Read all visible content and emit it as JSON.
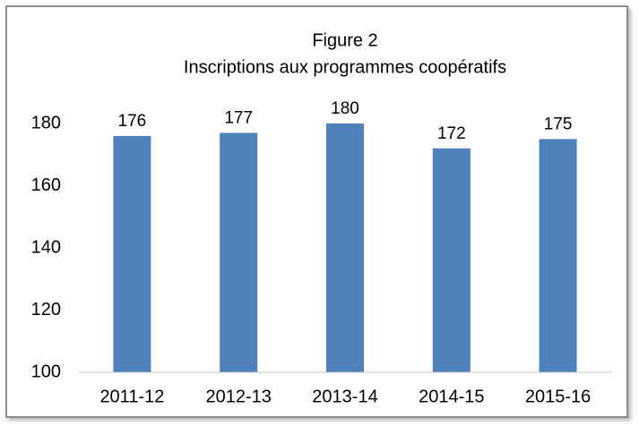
{
  "chart_data": {
    "type": "bar",
    "title": "Figure 2",
    "subtitle": "Inscriptions aux programmes coopératifs",
    "categories": [
      "2011-12",
      "2012-13",
      "2013-14",
      "2014-15",
      "2015-16"
    ],
    "values": [
      176,
      177,
      180,
      172,
      175
    ],
    "color": "#4f81bd",
    "ylim": [
      100,
      180
    ],
    "yticks": [
      100,
      120,
      140,
      160,
      180
    ],
    "grid": false
  }
}
